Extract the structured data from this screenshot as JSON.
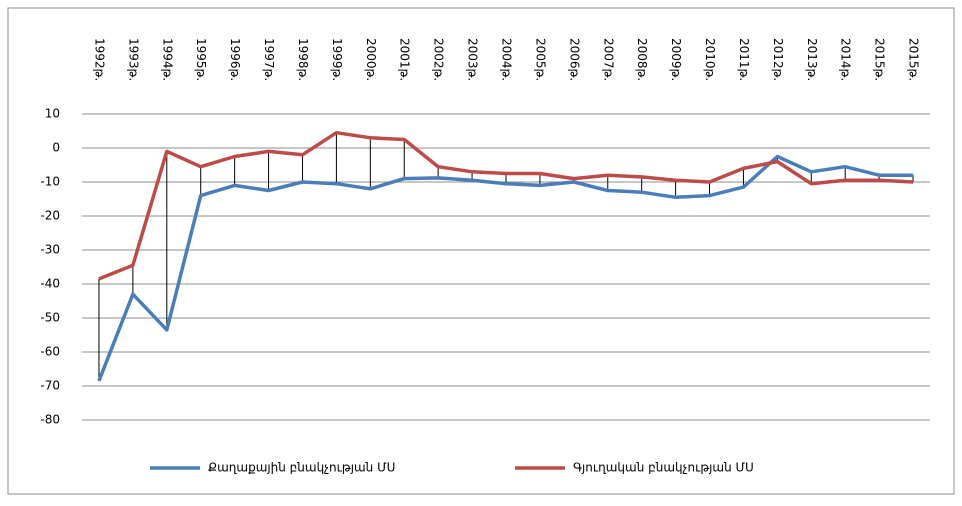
{
  "chart_data": {
    "type": "line",
    "categories": [
      "1992թ.",
      "1993թ.",
      "1994թ.",
      "1995թ.",
      "1996թ.",
      "1997թ.",
      "1998թ.",
      "1999թ.",
      "2000թ.",
      "2001թ.",
      "2002թ.",
      "2003թ.",
      "2004թ.",
      "2005թ.",
      "2006թ.",
      "2007թ.",
      "2008թ.",
      "2009թ.",
      "2010թ.",
      "2011թ.",
      "2012թ.",
      "2013թ.",
      "2014թ.",
      "2015թ.",
      "2015թ."
    ],
    "series": [
      {
        "name": "Քաղաքային բնակչության  ՄՍ",
        "color": "#4a7ebb",
        "values": [
          -68.5,
          -43,
          -53.5,
          -14,
          -11,
          -12.5,
          -10,
          -10.5,
          -12,
          -9,
          -8.8,
          -9.5,
          -10.5,
          -11,
          -10,
          -12.5,
          -13,
          -14.5,
          -14,
          -11.5,
          -2.5,
          -7,
          -5.5,
          -8,
          -8
        ]
      },
      {
        "name": "Գյուղական բնակչության ՄՍ",
        "color": "#be4b48",
        "values": [
          -38.5,
          -34.5,
          -1,
          -5.5,
          -2.5,
          -1,
          -2,
          4.5,
          3,
          2.5,
          -5.5,
          -7,
          -7.5,
          -7.5,
          -9,
          -8,
          -8.5,
          -9.5,
          -10,
          -6,
          -4,
          -10.5,
          -9.5,
          -9.5,
          -10
        ]
      }
    ],
    "ylim": [
      -80,
      10
    ],
    "yticks": [
      -80,
      -70,
      -60,
      -50,
      -40,
      -30,
      -20,
      -10,
      0,
      10
    ],
    "grid": true,
    "drop_lines": true,
    "legend": "bottom"
  }
}
